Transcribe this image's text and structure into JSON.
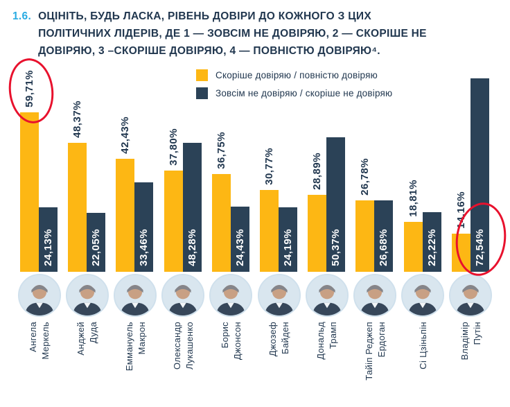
{
  "header": {
    "number": "1.6.",
    "title_lines": [
      "ОЦІНІТЬ, БУДЬ ЛАСКА, РІВЕНЬ ДОВІРИ ДО КОЖНОГО З ЦИХ",
      "ПОЛІТИЧНИХ ЛІДЕРІВ, ДЕ 1 — ЗОВСІМ НЕ ДОВІРЯЮ, 2 — СКОРІШЕ НЕ",
      "ДОВІРЯЮ, 3 –СКОРІШЕ ДОВІРЯЮ, 4 — ПОВНІСТЮ ДОВІРЯЮ⁴."
    ]
  },
  "palette": {
    "trust": "#FDB714",
    "distrust": "#2B4257",
    "text": "#21374F",
    "accent": "#29ABE2",
    "highlight": "#E8112D"
  },
  "legend": [
    {
      "label": "Скоріше довіряю / повністю довіряю",
      "color": "#FDB714"
    },
    {
      "label": "Зовсім не довіряю / скоріше не довіряю",
      "color": "#2B4257"
    }
  ],
  "chart_data": {
    "type": "bar",
    "title": "ОЦІНІТЬ, БУДЬ ЛАСКА, РІВЕНЬ ДОВІРИ ДО КОЖНОГО З ЦИХ ПОЛІТИЧНИХ ЛІДЕРІВ, ДЕ 1 — ЗОВСІМ НЕ ДОВІРЯЮ, 2 — СКОРІШЕ НЕ ДОВІРЯЮ, 3 –СКОРІШЕ ДОВІРЯЮ, 4 — ПОВНІСТЮ ДОВІРЯЮ⁴.",
    "categories": [
      "Ангела Меркель",
      "Анджей Дуда",
      "Еммануель Макрон",
      "Олександр Лукашенко",
      "Борис Джонсон",
      "Джозеф Байден",
      "Дональд Трамп",
      "Тайіп Реджеп Ердоган",
      "Сі Цзіньпін",
      "Владімір Путін"
    ],
    "series": [
      {
        "name": "Скоріше довіряю / повністю довіряю",
        "color": "#FDB714",
        "values": [
          59.71,
          48.37,
          42.43,
          37.8,
          36.75,
          30.77,
          28.89,
          26.78,
          18.81,
          14.16
        ],
        "labels": [
          "59,71%",
          "48,37%",
          "42,43%",
          "37,80%",
          "36,75%",
          "30,77%",
          "28,89%",
          "26,78%",
          "18,81%",
          "14,16%"
        ]
      },
      {
        "name": "Зовсім не довіряю / скоріше не довіряю",
        "color": "#2B4257",
        "values": [
          24.13,
          22.05,
          33.46,
          48.28,
          24.43,
          24.19,
          50.37,
          26.68,
          22.22,
          72.54
        ],
        "labels": [
          "24,13%",
          "22,05%",
          "33,46%",
          "48,28%",
          "24,43%",
          "24,19%",
          "50,37%",
          "26,68%",
          "22,22%",
          "72,54%"
        ]
      }
    ],
    "ylim": [
      0,
      75
    ],
    "grid": false,
    "legend_position": "top-center",
    "value_labels_rotated": true,
    "annotations": [
      {
        "type": "highlight-circle",
        "category": "Ангела Меркель",
        "series": "Скоріше довіряю / повністю довіряю",
        "value_label": "59,71%",
        "color": "#E8112D"
      },
      {
        "type": "highlight-circle",
        "category": "Владімір Путін",
        "series": "Зовсім не довіряю / скоріше не довіряю",
        "value_label": "72,54%",
        "color": "#E8112D"
      }
    ]
  },
  "leaders": [
    {
      "name": "Ангела Меркель",
      "name_lines": [
        "Ангела",
        "Меркель"
      ]
    },
    {
      "name": "Анджей Дуда",
      "name_lines": [
        "Анджей",
        "Дуда"
      ]
    },
    {
      "name": "Еммануель Макрон",
      "name_lines": [
        "Еммануель",
        "Макрон"
      ]
    },
    {
      "name": "Олександр Лукашенко",
      "name_lines": [
        "Олександр",
        "Лукашенко"
      ]
    },
    {
      "name": "Борис Джонсон",
      "name_lines": [
        "Борис",
        "Джонсон"
      ]
    },
    {
      "name": "Джозеф Байден",
      "name_lines": [
        "Джозеф",
        "Байден"
      ]
    },
    {
      "name": "Дональд Трамп",
      "name_lines": [
        "Дональд",
        "Трамп"
      ]
    },
    {
      "name": "Тайіп Реджеп Ердоган",
      "name_lines": [
        "Тайіп Реджеп",
        "Ердоган"
      ]
    },
    {
      "name": "Сі Цзіньпін",
      "name_lines": [
        "Сі Цзіньпін"
      ]
    },
    {
      "name": "Владімір Путін",
      "name_lines": [
        "Владімір",
        "Путін"
      ]
    }
  ]
}
